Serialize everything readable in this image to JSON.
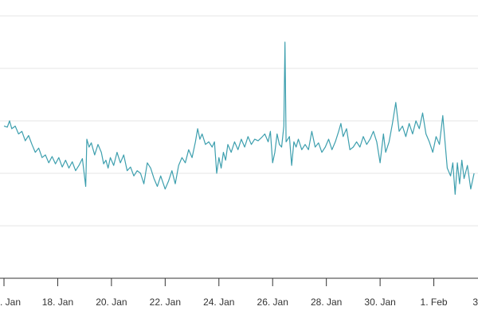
{
  "chart_data": {
    "type": "line",
    "title": "",
    "xlabel": "",
    "ylabel": "",
    "x_axis": {
      "ticks": [
        {
          "date": "2019-01-16",
          "label": ". Jan"
        },
        {
          "date": "2019-01-18",
          "label": "18. Jan"
        },
        {
          "date": "2019-01-20",
          "label": "20. Jan"
        },
        {
          "date": "2019-01-22",
          "label": "22. Jan"
        },
        {
          "date": "2019-01-24",
          "label": "24. Jan"
        },
        {
          "date": "2019-01-26",
          "label": "26. Jan"
        },
        {
          "date": "2019-01-28",
          "label": "28. Jan"
        },
        {
          "date": "2019-01-30",
          "label": "30. Jan"
        },
        {
          "date": "2019-02-01",
          "label": "1. Feb"
        },
        {
          "date": "2019-02-03",
          "label": "3"
        }
      ],
      "range": [
        "2019-01-16",
        "2019-02-03"
      ]
    },
    "y_axis": {
      "range": [
        0,
        5
      ],
      "gridlines": [
        0,
        1,
        2,
        3,
        4,
        5
      ],
      "tick_labels_visible": false
    },
    "grid": true,
    "legend": "none",
    "series": [
      {
        "color": "#3d9fae",
        "points": [
          [
            "2019-01-16 00:00",
            2.9
          ],
          [
            "2019-01-16 03:00",
            2.88
          ],
          [
            "2019-01-16 05:00",
            3.0
          ],
          [
            "2019-01-16 07:00",
            2.85
          ],
          [
            "2019-01-16 10:00",
            2.9
          ],
          [
            "2019-01-16 13:00",
            2.75
          ],
          [
            "2019-01-16 16:00",
            2.8
          ],
          [
            "2019-01-16 19:00",
            2.62
          ],
          [
            "2019-01-16 22:00",
            2.72
          ],
          [
            "2019-01-17 01:00",
            2.55
          ],
          [
            "2019-01-17 04:00",
            2.4
          ],
          [
            "2019-01-17 07:00",
            2.48
          ],
          [
            "2019-01-17 10:00",
            2.3
          ],
          [
            "2019-01-17 13:00",
            2.35
          ],
          [
            "2019-01-17 16:00",
            2.2
          ],
          [
            "2019-01-17 19:00",
            2.32
          ],
          [
            "2019-01-17 22:00",
            2.18
          ],
          [
            "2019-01-18 01:00",
            2.3
          ],
          [
            "2019-01-18 04:00",
            2.12
          ],
          [
            "2019-01-18 07:00",
            2.25
          ],
          [
            "2019-01-18 10:00",
            2.1
          ],
          [
            "2019-01-18 13:00",
            2.22
          ],
          [
            "2019-01-18 16:00",
            2.05
          ],
          [
            "2019-01-18 19:00",
            2.15
          ],
          [
            "2019-01-18 22:00",
            2.28
          ],
          [
            "2019-01-19 01:00",
            1.75
          ],
          [
            "2019-01-19 02:00",
            2.65
          ],
          [
            "2019-01-19 04:00",
            2.5
          ],
          [
            "2019-01-19 06:00",
            2.58
          ],
          [
            "2019-01-19 09:00",
            2.35
          ],
          [
            "2019-01-19 12:00",
            2.55
          ],
          [
            "2019-01-19 15:00",
            2.4
          ],
          [
            "2019-01-19 17:00",
            2.18
          ],
          [
            "2019-01-19 19:00",
            2.25
          ],
          [
            "2019-01-19 21:00",
            2.1
          ],
          [
            "2019-01-19 23:00",
            2.3
          ],
          [
            "2019-01-20 02:00",
            2.15
          ],
          [
            "2019-01-20 05:00",
            2.4
          ],
          [
            "2019-01-20 08:00",
            2.2
          ],
          [
            "2019-01-20 11:00",
            2.35
          ],
          [
            "2019-01-20 14:00",
            2.05
          ],
          [
            "2019-01-20 17:00",
            2.12
          ],
          [
            "2019-01-20 20:00",
            1.95
          ],
          [
            "2019-01-20 23:00",
            2.05
          ],
          [
            "2019-01-21 02:00",
            2.0
          ],
          [
            "2019-01-21 05:00",
            1.8
          ],
          [
            "2019-01-21 08:00",
            2.2
          ],
          [
            "2019-01-21 11:00",
            2.1
          ],
          [
            "2019-01-21 14:00",
            1.9
          ],
          [
            "2019-01-21 17:00",
            1.75
          ],
          [
            "2019-01-21 20:00",
            1.95
          ],
          [
            "2019-01-22 00:00",
            1.7
          ],
          [
            "2019-01-22 03:00",
            1.85
          ],
          [
            "2019-01-22 06:00",
            2.05
          ],
          [
            "2019-01-22 09:00",
            1.8
          ],
          [
            "2019-01-22 12:00",
            2.15
          ],
          [
            "2019-01-22 15:00",
            2.3
          ],
          [
            "2019-01-22 18:00",
            2.2
          ],
          [
            "2019-01-22 21:00",
            2.45
          ],
          [
            "2019-01-23 00:00",
            2.3
          ],
          [
            "2019-01-23 03:00",
            2.6
          ],
          [
            "2019-01-23 05:00",
            2.85
          ],
          [
            "2019-01-23 07:00",
            2.65
          ],
          [
            "2019-01-23 09:00",
            2.75
          ],
          [
            "2019-01-23 12:00",
            2.55
          ],
          [
            "2019-01-23 15:00",
            2.6
          ],
          [
            "2019-01-23 18:00",
            2.5
          ],
          [
            "2019-01-23 20:00",
            2.6
          ],
          [
            "2019-01-23 22:00",
            2.0
          ],
          [
            "2019-01-24 00:00",
            2.3
          ],
          [
            "2019-01-24 02:00",
            2.1
          ],
          [
            "2019-01-24 04:00",
            2.4
          ],
          [
            "2019-01-24 06:00",
            2.25
          ],
          [
            "2019-01-24 08:00",
            2.55
          ],
          [
            "2019-01-24 11:00",
            2.4
          ],
          [
            "2019-01-24 14:00",
            2.6
          ],
          [
            "2019-01-24 17:00",
            2.45
          ],
          [
            "2019-01-24 20:00",
            2.65
          ],
          [
            "2019-01-24 23:00",
            2.5
          ],
          [
            "2019-01-25 02:00",
            2.7
          ],
          [
            "2019-01-25 05:00",
            2.55
          ],
          [
            "2019-01-25 08:00",
            2.65
          ],
          [
            "2019-01-25 11:00",
            2.62
          ],
          [
            "2019-01-25 14:00",
            2.68
          ],
          [
            "2019-01-25 17:00",
            2.75
          ],
          [
            "2019-01-25 20:00",
            2.6
          ],
          [
            "2019-01-25 22:00",
            2.8
          ],
          [
            "2019-01-26 00:00",
            2.2
          ],
          [
            "2019-01-26 02:00",
            2.4
          ],
          [
            "2019-01-26 04:00",
            2.75
          ],
          [
            "2019-01-26 06:00",
            2.55
          ],
          [
            "2019-01-26 08:00",
            2.5
          ],
          [
            "2019-01-26 10:00",
            2.9
          ],
          [
            "2019-01-26 11:00",
            4.5
          ],
          [
            "2019-01-26 12:00",
            2.6
          ],
          [
            "2019-01-26 15:00",
            2.7
          ],
          [
            "2019-01-26 17:00",
            2.15
          ],
          [
            "2019-01-26 19:00",
            2.6
          ],
          [
            "2019-01-26 21:00",
            2.5
          ],
          [
            "2019-01-26 23:00",
            2.65
          ],
          [
            "2019-01-27 02:00",
            2.45
          ],
          [
            "2019-01-27 05:00",
            2.55
          ],
          [
            "2019-01-27 08:00",
            2.45
          ],
          [
            "2019-01-27 11:00",
            2.8
          ],
          [
            "2019-01-27 14:00",
            2.5
          ],
          [
            "2019-01-27 17:00",
            2.58
          ],
          [
            "2019-01-27 20:00",
            2.4
          ],
          [
            "2019-01-27 23:00",
            2.5
          ],
          [
            "2019-01-28 02:00",
            2.65
          ],
          [
            "2019-01-28 05:00",
            2.45
          ],
          [
            "2019-01-28 08:00",
            2.6
          ],
          [
            "2019-01-28 11:00",
            2.8
          ],
          [
            "2019-01-28 13:00",
            2.95
          ],
          [
            "2019-01-28 15:00",
            2.7
          ],
          [
            "2019-01-28 18:00",
            2.85
          ],
          [
            "2019-01-28 21:00",
            2.45
          ],
          [
            "2019-01-29 00:00",
            2.5
          ],
          [
            "2019-01-29 03:00",
            2.6
          ],
          [
            "2019-01-29 06:00",
            2.5
          ],
          [
            "2019-01-29 09:00",
            2.7
          ],
          [
            "2019-01-29 12:00",
            2.55
          ],
          [
            "2019-01-29 15:00",
            2.65
          ],
          [
            "2019-01-29 18:00",
            2.8
          ],
          [
            "2019-01-29 21:00",
            2.6
          ],
          [
            "2019-01-30 00:00",
            2.2
          ],
          [
            "2019-01-30 03:00",
            2.75
          ],
          [
            "2019-01-30 05:00",
            2.4
          ],
          [
            "2019-01-30 08:00",
            2.6
          ],
          [
            "2019-01-30 11:00",
            2.95
          ],
          [
            "2019-01-30 14:00",
            3.35
          ],
          [
            "2019-01-30 17:00",
            2.8
          ],
          [
            "2019-01-30 20:00",
            2.9
          ],
          [
            "2019-01-30 23:00",
            2.7
          ],
          [
            "2019-01-31 02:00",
            2.95
          ],
          [
            "2019-01-31 05:00",
            2.75
          ],
          [
            "2019-01-31 08:00",
            3.0
          ],
          [
            "2019-01-31 11:00",
            2.85
          ],
          [
            "2019-01-31 14:00",
            3.15
          ],
          [
            "2019-01-31 17:00",
            2.75
          ],
          [
            "2019-01-31 20:00",
            2.6
          ],
          [
            "2019-01-31 23:00",
            2.4
          ],
          [
            "2019-02-01 02:00",
            2.7
          ],
          [
            "2019-02-01 05:00",
            2.55
          ],
          [
            "2019-02-01 08:00",
            3.1
          ],
          [
            "2019-02-01 10:00",
            2.6
          ],
          [
            "2019-02-01 12:00",
            2.1
          ],
          [
            "2019-02-01 15:00",
            1.95
          ],
          [
            "2019-02-01 17:00",
            2.2
          ],
          [
            "2019-02-01 19:00",
            1.6
          ],
          [
            "2019-02-01 21:00",
            2.2
          ],
          [
            "2019-02-01 23:00",
            1.8
          ],
          [
            "2019-02-02 01:00",
            2.25
          ],
          [
            "2019-02-02 03:00",
            1.9
          ],
          [
            "2019-02-02 06:00",
            2.15
          ],
          [
            "2019-02-02 09:00",
            1.7
          ],
          [
            "2019-02-02 12:00",
            2.0
          ]
        ]
      }
    ]
  }
}
